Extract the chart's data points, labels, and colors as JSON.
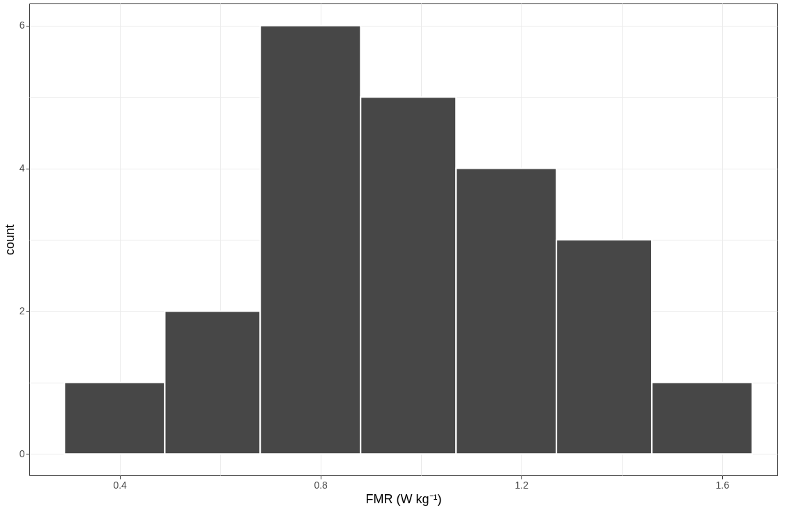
{
  "chart_data": {
    "type": "histogram",
    "xlabel": "FMR (W kg⁻¹)",
    "ylabel": "count",
    "bins": [
      0.29,
      0.49,
      0.68,
      0.88,
      1.07,
      1.27,
      1.46,
      1.66
    ],
    "values": [
      1,
      2,
      6,
      5,
      4,
      3,
      1
    ],
    "color": "#474747",
    "xlim": [
      0.22,
      1.71
    ],
    "ylim": [
      -0.3,
      6.31
    ],
    "xticks": [
      0.4,
      {
        "value": 0.6,
        "label": null
      },
      0.8,
      {
        "value": 1.0,
        "label": null
      },
      1.2,
      {
        "value": 1.4,
        "label": null
      },
      1.6
    ],
    "yticks": [
      0,
      {
        "value": 1,
        "label": null
      },
      2,
      {
        "value": 3,
        "label": null
      },
      4,
      {
        "value": 5,
        "label": null
      },
      6
    ],
    "grid": true
  }
}
